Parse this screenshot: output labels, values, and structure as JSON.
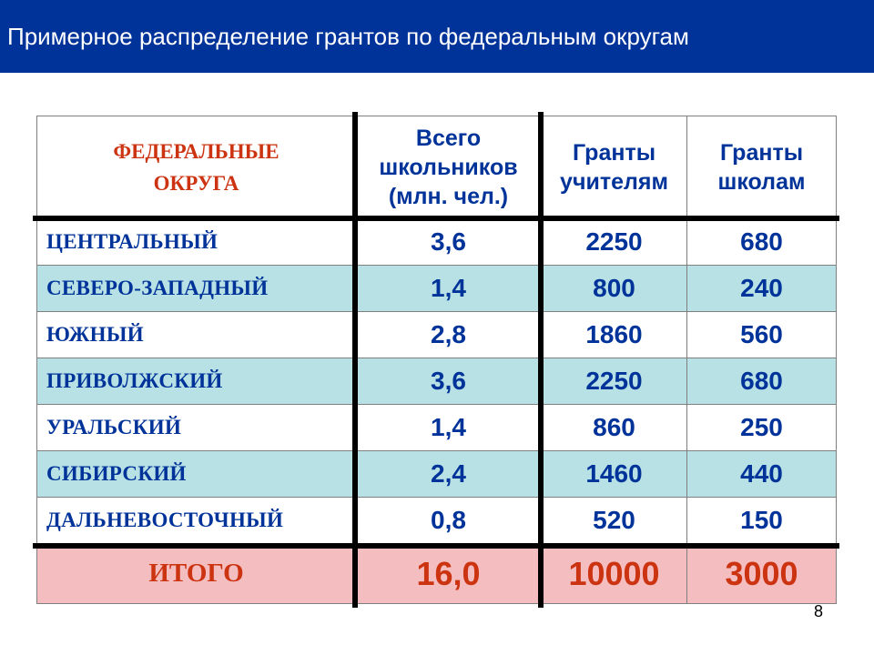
{
  "slide": {
    "title": "Примерное распределение грантов по федеральным округам",
    "page_number": "8"
  },
  "colors": {
    "title_bar": "#003399",
    "text_blue": "#003399",
    "text_red": "#cc3311",
    "row_shaded": "#b7e1e5",
    "row_total": "#f4bdbf"
  },
  "table": {
    "headers": {
      "district_line1": "ФЕДЕРАЛЬНЫЕ",
      "district_line2": "ОКРУГА",
      "pupils_line1": "Всего",
      "pupils_line2": "школьников",
      "pupils_line3": "(млн. чел.)",
      "teachers_line1": "Гранты",
      "teachers_line2": "учителям",
      "schools_line1": "Гранты",
      "schools_line2": "школам"
    },
    "rows": [
      {
        "district": "ЦЕНТРАЛЬНЫЙ",
        "pupils": "3,6",
        "teachers": "2250",
        "schools": "680"
      },
      {
        "district": "СЕВЕРО-ЗАПАДНЫЙ",
        "pupils": "1,4",
        "teachers": "800",
        "schools": "240"
      },
      {
        "district": "ЮЖНЫЙ",
        "pupils": "2,8",
        "teachers": "1860",
        "schools": "560"
      },
      {
        "district": "ПРИВОЛЖСКИЙ",
        "pupils": "3,6",
        "teachers": "2250",
        "schools": "680"
      },
      {
        "district": "УРАЛЬСКИЙ",
        "pupils": "1,4",
        "teachers": "860",
        "schools": "250"
      },
      {
        "district": "СИБИРСКИЙ",
        "pupils": "2,4",
        "teachers": "1460",
        "schools": "440"
      },
      {
        "district": "ДАЛЬНЕВОСТОЧНЫЙ",
        "pupils": "0,8",
        "teachers": "520",
        "schools": "150"
      }
    ],
    "total": {
      "label": "ИТОГО",
      "pupils": "16,0",
      "teachers": "10000",
      "schools": "3000"
    }
  }
}
